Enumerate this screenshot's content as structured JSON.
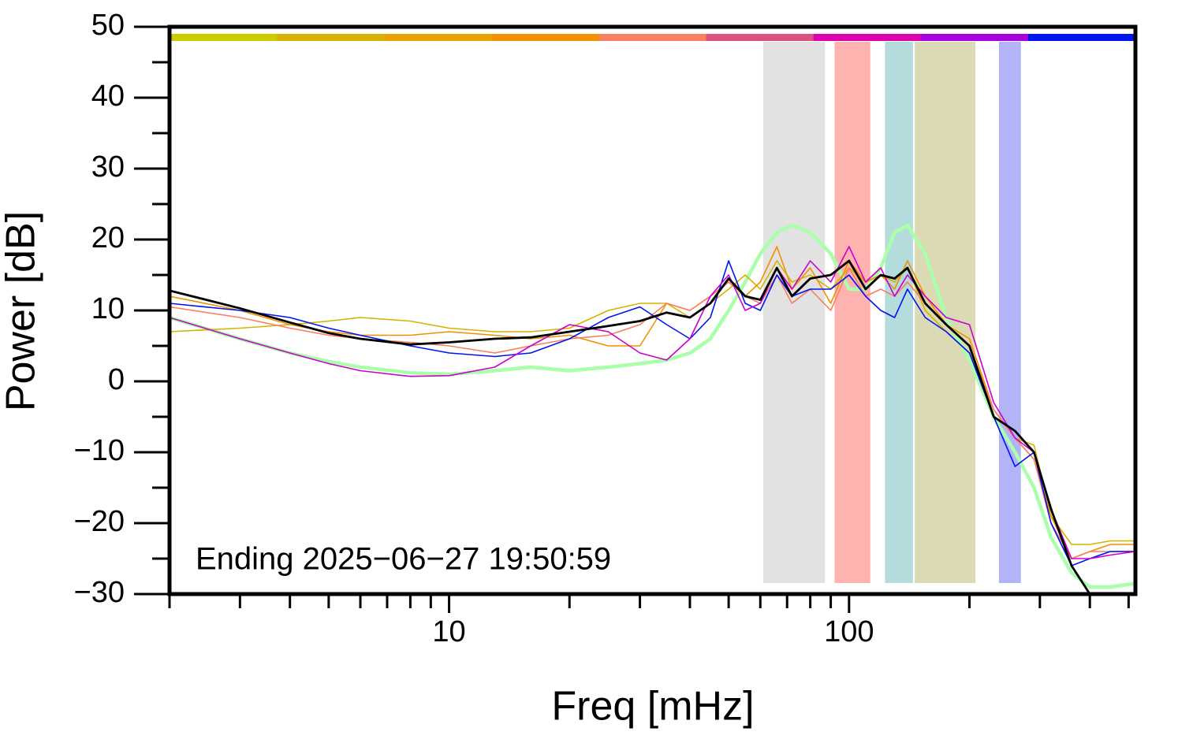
{
  "chart_data": {
    "type": "line",
    "x_label": "Freq [mHz]",
    "y_label": "Power [dB]",
    "annotation": "Ending 2025−06−27 19:50:59",
    "log_x": true,
    "xlim": [
      2,
      520
    ],
    "xticks": [
      10,
      100
    ],
    "xminorticks": [
      2,
      3,
      4,
      5,
      6,
      7,
      8,
      9,
      20,
      30,
      40,
      50,
      60,
      70,
      80,
      90,
      200,
      300,
      400,
      500
    ],
    "ylim": [
      -30,
      50
    ],
    "yticks": [
      {
        "value": -30,
        "label": "−30"
      },
      {
        "value": -20,
        "label": "−20"
      },
      {
        "value": -10,
        "label": "−10"
      },
      0,
      10,
      20,
      30,
      40,
      50
    ],
    "yminorticks": [
      -25,
      -15,
      -5,
      5,
      15,
      25,
      35,
      45
    ],
    "bands": [
      {
        "range": [
          61,
          87
        ],
        "color": "#e2e2e2"
      },
      {
        "range": [
          92,
          113
        ],
        "color": "#ffb3b0"
      },
      {
        "range": [
          123,
          144.5
        ],
        "color": "#b4dcdc"
      },
      {
        "range": [
          146,
          207
        ],
        "color": "#dbdab4"
      },
      {
        "range": [
          237,
          269
        ],
        "color": "#b3b3f7"
      }
    ],
    "time_bar_colors": [
      "#cccc00",
      "#d8b400",
      "#eaa200",
      "#f49000",
      "#fa7e60",
      "#dc5080",
      "#dc00b0",
      "#a800dc",
      "#0014f0"
    ],
    "x": [
      2,
      3,
      4,
      5,
      6,
      8,
      10,
      13,
      16,
      20,
      25,
      30,
      35,
      40,
      45,
      50,
      55,
      60,
      66,
      72,
      80,
      90,
      100,
      110,
      120,
      130,
      140,
      155,
      175,
      200,
      230,
      260,
      290,
      320,
      360,
      400,
      450,
      520
    ],
    "series": [
      {
        "color": "#aaffaa",
        "width": 4.5,
        "values": [
          9,
          6,
          4,
          2.8,
          2,
          1.2,
          1,
          1.5,
          2,
          1.5,
          2,
          2.5,
          3,
          4,
          6,
          10,
          14,
          18,
          21,
          22,
          21,
          18,
          13,
          13,
          16,
          21,
          22,
          18,
          9,
          3,
          -5,
          -10,
          -15,
          -22,
          -27,
          -29,
          -29,
          -28.5
        ]
      },
      {
        "color": "#d4b400",
        "width": 1.6,
        "values": [
          7,
          7.5,
          8,
          8.5,
          9,
          8.5,
          7.5,
          7,
          7,
          7.5,
          10,
          11,
          11,
          9,
          11,
          13,
          15,
          13,
          17,
          14,
          15,
          13,
          16,
          14,
          15,
          14,
          16,
          10,
          7,
          4,
          -4,
          -8,
          -9,
          -19,
          -23,
          -23,
          -22.5,
          -22.5
        ]
      },
      {
        "color": "#f09000",
        "width": 1.6,
        "values": [
          12,
          10,
          8,
          7,
          6.5,
          6.5,
          7,
          6.5,
          6,
          6.5,
          5,
          5,
          11,
          10,
          12,
          14,
          12,
          14,
          19,
          13,
          16,
          11,
          17,
          14,
          15,
          13,
          17,
          12,
          8,
          6,
          -4,
          -8,
          -11,
          -19,
          -25,
          -24,
          -23,
          -23
        ]
      },
      {
        "color": "#fa7e60",
        "width": 1.6,
        "values": [
          10.5,
          9,
          7.5,
          6.5,
          6,
          5.5,
          5,
          4,
          5,
          6,
          6.5,
          8,
          11,
          10,
          12,
          14,
          12,
          11,
          15,
          11,
          13,
          10,
          16,
          12,
          13,
          12,
          14,
          11,
          8,
          5,
          -4,
          -8,
          -11,
          -20,
          -25,
          -24,
          -24,
          -24
        ]
      },
      {
        "color": "#0014f0",
        "width": 1.6,
        "values": [
          11,
          10,
          9,
          7.5,
          6.5,
          5,
          4,
          3.5,
          4,
          6,
          9,
          10.5,
          8,
          6,
          9,
          17,
          11,
          10,
          15,
          12,
          13,
          13,
          15,
          12,
          10,
          9,
          13,
          9,
          7,
          4,
          -5,
          -12,
          -10,
          -20,
          -26,
          -25,
          -24,
          -24
        ]
      },
      {
        "color": "#cc00cc",
        "width": 1.6,
        "values": [
          9,
          6,
          4,
          2.5,
          1.5,
          0.7,
          0.8,
          2,
          5,
          8,
          7,
          4,
          3,
          6,
          12,
          15,
          10,
          11,
          16,
          13,
          17,
          14,
          19,
          14,
          16,
          12,
          15,
          12,
          9,
          8,
          -3,
          -8,
          -10,
          -18,
          -25,
          -25,
          -24.5,
          -24
        ]
      },
      {
        "color": "#000000",
        "width": 2.8,
        "values": [
          12.8,
          10.3,
          8.3,
          6.8,
          6,
          5.2,
          5.5,
          6,
          6.2,
          7,
          7.8,
          8.5,
          9.7,
          9,
          11,
          14.5,
          12,
          11.5,
          16,
          12,
          14.5,
          15,
          17,
          13,
          15,
          14.5,
          16,
          11,
          8,
          5,
          -5,
          -7,
          -10,
          -18,
          -26,
          -30,
          -30,
          -30
        ]
      }
    ]
  }
}
